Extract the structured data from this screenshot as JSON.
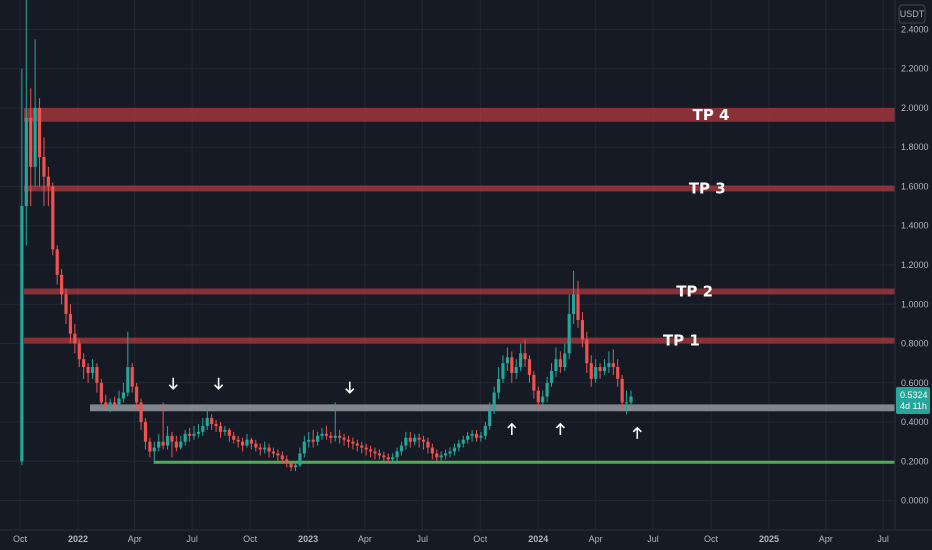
{
  "chart_data": {
    "type": "candlestick",
    "unit": "USDT",
    "ylim": [
      -0.15,
      2.55
    ],
    "y_ticks": [
      {
        "value": 2.4,
        "label": "2.4000"
      },
      {
        "value": 2.2,
        "label": "2.2000"
      },
      {
        "value": 2.0,
        "label": "2.0000"
      },
      {
        "value": 1.8,
        "label": "1.8000"
      },
      {
        "value": 1.6,
        "label": "1.6000"
      },
      {
        "value": 1.4,
        "label": "1.4000"
      },
      {
        "value": 1.2,
        "label": "1.2000"
      },
      {
        "value": 1.0,
        "label": "1.0000"
      },
      {
        "value": 0.8,
        "label": "0.8000"
      },
      {
        "value": 0.6,
        "label": "0.6000"
      },
      {
        "value": 0.4,
        "label": "0.4000"
      },
      {
        "value": 0.2,
        "label": "0.2000"
      },
      {
        "value": 0.0,
        "label": "0.0000"
      }
    ],
    "x_range": [
      "2021-10-01",
      "2025-07-15"
    ],
    "x_ticks": [
      {
        "date": "2021-10-01",
        "label": "Oct",
        "bold": false
      },
      {
        "date": "2022-01-01",
        "label": "2022",
        "bold": true
      },
      {
        "date": "2022-04-01",
        "label": "Apr",
        "bold": false
      },
      {
        "date": "2022-07-01",
        "label": "Jul",
        "bold": false
      },
      {
        "date": "2022-10-01",
        "label": "Oct",
        "bold": false
      },
      {
        "date": "2023-01-01",
        "label": "2023",
        "bold": true
      },
      {
        "date": "2023-04-01",
        "label": "Apr",
        "bold": false
      },
      {
        "date": "2023-07-01",
        "label": "Jul",
        "bold": false
      },
      {
        "date": "2023-10-01",
        "label": "Oct",
        "bold": false
      },
      {
        "date": "2024-01-01",
        "label": "2024",
        "bold": true
      },
      {
        "date": "2024-04-01",
        "label": "Apr",
        "bold": false
      },
      {
        "date": "2024-07-01",
        "label": "Jul",
        "bold": false
      },
      {
        "date": "2024-10-01",
        "label": "Oct",
        "bold": false
      },
      {
        "date": "2025-01-01",
        "label": "2025",
        "bold": true
      },
      {
        "date": "2025-04-01",
        "label": "Apr",
        "bold": false
      },
      {
        "date": "2025-07-01",
        "label": "Jul",
        "bold": false
      }
    ],
    "zones": [
      {
        "label": "TP 4",
        "low": 1.93,
        "high": 2.0,
        "color": "#b2393f",
        "label_date": "2024-10-01"
      },
      {
        "label": "TP 3",
        "low": 1.575,
        "high": 1.605,
        "color": "#b2393f",
        "label_date": "2024-09-25"
      },
      {
        "label": "TP 2",
        "low": 1.05,
        "high": 1.08,
        "color": "#b2393f",
        "label_date": "2024-09-05"
      },
      {
        "label": "TP 1",
        "low": 0.8,
        "high": 0.83,
        "color": "#b2393f",
        "label_date": "2024-08-15"
      },
      {
        "label": "",
        "low": 0.455,
        "high": 0.49,
        "color": "#9598a1",
        "label_date": ""
      }
    ],
    "support_line": {
      "value": 0.195,
      "color": "#4caf50"
    },
    "arrows": [
      {
        "date": "2022-06-01",
        "price": 0.595,
        "dir": "down"
      },
      {
        "date": "2022-08-12",
        "price": 0.595,
        "dir": "down"
      },
      {
        "date": "2023-03-08",
        "price": 0.575,
        "dir": "down"
      },
      {
        "date": "2023-11-20",
        "price": 0.365,
        "dir": "up"
      },
      {
        "date": "2024-02-05",
        "price": 0.365,
        "dir": "up"
      },
      {
        "date": "2024-06-06",
        "price": 0.345,
        "dir": "up"
      }
    ],
    "colors": {
      "up": "#26a69a",
      "down": "#ef5350",
      "grid": "#232733",
      "text": "#b2b5be"
    },
    "last_price": {
      "value": 0.5324,
      "label": "0.5324",
      "countdown": "4d 11h",
      "color": "#26a69a"
    },
    "candles_weekly_from": "2021-10-04",
    "candles": [
      [
        0.2,
        1.5,
        2.2,
        0.18
      ],
      [
        1.5,
        1.95,
        2.6,
        1.3
      ],
      [
        1.95,
        1.7,
        2.1,
        1.5
      ],
      [
        1.7,
        2.0,
        2.35,
        1.6
      ],
      [
        2.0,
        1.75,
        2.05,
        1.6
      ],
      [
        1.75,
        1.65,
        1.85,
        1.5
      ],
      [
        1.65,
        1.6,
        1.7,
        1.5
      ],
      [
        1.6,
        1.28,
        1.62,
        1.25
      ],
      [
        1.28,
        1.15,
        1.3,
        1.1
      ],
      [
        1.15,
        1.05,
        1.18,
        1.0
      ],
      [
        1.05,
        0.95,
        1.08,
        0.9
      ],
      [
        0.95,
        0.85,
        1.0,
        0.8
      ],
      [
        0.85,
        0.8,
        0.9,
        0.75
      ],
      [
        0.8,
        0.72,
        0.82,
        0.68
      ],
      [
        0.72,
        0.68,
        0.75,
        0.62
      ],
      [
        0.68,
        0.65,
        0.7,
        0.6
      ],
      [
        0.65,
        0.68,
        0.72,
        0.62
      ],
      [
        0.68,
        0.6,
        0.7,
        0.55
      ],
      [
        0.6,
        0.5,
        0.62,
        0.48
      ],
      [
        0.5,
        0.48,
        0.54,
        0.46
      ],
      [
        0.48,
        0.5,
        0.52,
        0.45
      ],
      [
        0.5,
        0.49,
        0.53,
        0.47
      ],
      [
        0.49,
        0.52,
        0.56,
        0.47
      ],
      [
        0.52,
        0.55,
        0.6,
        0.5
      ],
      [
        0.55,
        0.68,
        0.86,
        0.53
      ],
      [
        0.68,
        0.58,
        0.7,
        0.55
      ],
      [
        0.58,
        0.5,
        0.6,
        0.46
      ],
      [
        0.5,
        0.4,
        0.52,
        0.36
      ],
      [
        0.4,
        0.3,
        0.42,
        0.26
      ],
      [
        0.3,
        0.25,
        0.32,
        0.22
      ],
      [
        0.25,
        0.27,
        0.3,
        0.2
      ],
      [
        0.27,
        0.3,
        0.34,
        0.25
      ],
      [
        0.3,
        0.28,
        0.5,
        0.26
      ],
      [
        0.28,
        0.33,
        0.38,
        0.26
      ],
      [
        0.33,
        0.3,
        0.35,
        0.22
      ],
      [
        0.3,
        0.27,
        0.33,
        0.25
      ],
      [
        0.27,
        0.3,
        0.33,
        0.26
      ],
      [
        0.3,
        0.34,
        0.36,
        0.28
      ],
      [
        0.34,
        0.33,
        0.37,
        0.3
      ],
      [
        0.33,
        0.34,
        0.38,
        0.31
      ],
      [
        0.34,
        0.35,
        0.39,
        0.32
      ],
      [
        0.35,
        0.38,
        0.42,
        0.33
      ],
      [
        0.38,
        0.42,
        0.48,
        0.36
      ],
      [
        0.42,
        0.39,
        0.44,
        0.36
      ],
      [
        0.39,
        0.38,
        0.41,
        0.35
      ],
      [
        0.38,
        0.35,
        0.4,
        0.32
      ],
      [
        0.35,
        0.36,
        0.38,
        0.33
      ],
      [
        0.36,
        0.33,
        0.37,
        0.3
      ],
      [
        0.33,
        0.31,
        0.35,
        0.29
      ],
      [
        0.31,
        0.3,
        0.33,
        0.27
      ],
      [
        0.3,
        0.28,
        0.32,
        0.25
      ],
      [
        0.28,
        0.31,
        0.34,
        0.27
      ],
      [
        0.31,
        0.29,
        0.32,
        0.26
      ],
      [
        0.29,
        0.27,
        0.31,
        0.25
      ],
      [
        0.27,
        0.26,
        0.29,
        0.23
      ],
      [
        0.26,
        0.27,
        0.3,
        0.24
      ],
      [
        0.27,
        0.25,
        0.29,
        0.22
      ],
      [
        0.25,
        0.24,
        0.27,
        0.22
      ],
      [
        0.24,
        0.23,
        0.26,
        0.2
      ],
      [
        0.23,
        0.21,
        0.25,
        0.19
      ],
      [
        0.21,
        0.19,
        0.23,
        0.17
      ],
      [
        0.19,
        0.17,
        0.2,
        0.15
      ],
      [
        0.17,
        0.18,
        0.2,
        0.15
      ],
      [
        0.18,
        0.24,
        0.27,
        0.17
      ],
      [
        0.24,
        0.3,
        0.33,
        0.22
      ],
      [
        0.3,
        0.31,
        0.35,
        0.27
      ],
      [
        0.31,
        0.3,
        0.36,
        0.27
      ],
      [
        0.3,
        0.33,
        0.35,
        0.28
      ],
      [
        0.33,
        0.34,
        0.37,
        0.31
      ],
      [
        0.34,
        0.33,
        0.38,
        0.31
      ],
      [
        0.33,
        0.32,
        0.35,
        0.29
      ],
      [
        0.32,
        0.33,
        0.5,
        0.3
      ],
      [
        0.33,
        0.32,
        0.36,
        0.29
      ],
      [
        0.32,
        0.31,
        0.34,
        0.28
      ],
      [
        0.31,
        0.3,
        0.33,
        0.27
      ],
      [
        0.3,
        0.29,
        0.32,
        0.26
      ],
      [
        0.29,
        0.28,
        0.31,
        0.25
      ],
      [
        0.28,
        0.27,
        0.3,
        0.24
      ],
      [
        0.27,
        0.26,
        0.29,
        0.23
      ],
      [
        0.26,
        0.25,
        0.28,
        0.22
      ],
      [
        0.25,
        0.24,
        0.27,
        0.21
      ],
      [
        0.24,
        0.23,
        0.26,
        0.21
      ],
      [
        0.23,
        0.22,
        0.25,
        0.2
      ],
      [
        0.22,
        0.21,
        0.24,
        0.19
      ],
      [
        0.21,
        0.22,
        0.24,
        0.19
      ],
      [
        0.22,
        0.25,
        0.27,
        0.2
      ],
      [
        0.25,
        0.28,
        0.3,
        0.23
      ],
      [
        0.28,
        0.32,
        0.35,
        0.26
      ],
      [
        0.32,
        0.3,
        0.35,
        0.27
      ],
      [
        0.3,
        0.32,
        0.34,
        0.28
      ],
      [
        0.32,
        0.31,
        0.34,
        0.27
      ],
      [
        0.31,
        0.3,
        0.33,
        0.26
      ],
      [
        0.3,
        0.27,
        0.32,
        0.24
      ],
      [
        0.27,
        0.24,
        0.29,
        0.21
      ],
      [
        0.24,
        0.22,
        0.26,
        0.2
      ],
      [
        0.22,
        0.23,
        0.25,
        0.2
      ],
      [
        0.23,
        0.24,
        0.26,
        0.21
      ],
      [
        0.24,
        0.25,
        0.27,
        0.22
      ],
      [
        0.25,
        0.27,
        0.29,
        0.23
      ],
      [
        0.27,
        0.29,
        0.31,
        0.25
      ],
      [
        0.29,
        0.31,
        0.33,
        0.27
      ],
      [
        0.31,
        0.33,
        0.35,
        0.29
      ],
      [
        0.33,
        0.34,
        0.36,
        0.3
      ],
      [
        0.34,
        0.32,
        0.36,
        0.3
      ],
      [
        0.32,
        0.33,
        0.35,
        0.3
      ],
      [
        0.33,
        0.38,
        0.4,
        0.31
      ],
      [
        0.38,
        0.46,
        0.5,
        0.36
      ],
      [
        0.46,
        0.55,
        0.58,
        0.44
      ],
      [
        0.55,
        0.62,
        0.68,
        0.52
      ],
      [
        0.62,
        0.7,
        0.74,
        0.6
      ],
      [
        0.7,
        0.73,
        0.78,
        0.66
      ],
      [
        0.73,
        0.65,
        0.76,
        0.6
      ],
      [
        0.65,
        0.68,
        0.72,
        0.62
      ],
      [
        0.68,
        0.75,
        0.8,
        0.66
      ],
      [
        0.75,
        0.72,
        0.82,
        0.68
      ],
      [
        0.72,
        0.64,
        0.74,
        0.6
      ],
      [
        0.64,
        0.56,
        0.66,
        0.52
      ],
      [
        0.56,
        0.5,
        0.58,
        0.47
      ],
      [
        0.5,
        0.53,
        0.56,
        0.48
      ],
      [
        0.53,
        0.6,
        0.63,
        0.5
      ],
      [
        0.6,
        0.66,
        0.7,
        0.58
      ],
      [
        0.66,
        0.72,
        0.78,
        0.63
      ],
      [
        0.72,
        0.68,
        0.76,
        0.65
      ],
      [
        0.68,
        0.75,
        0.8,
        0.66
      ],
      [
        0.75,
        0.95,
        1.05,
        0.72
      ],
      [
        0.95,
        1.05,
        1.17,
        0.9
      ],
      [
        1.05,
        0.92,
        1.12,
        0.88
      ],
      [
        0.92,
        0.82,
        0.96,
        0.78
      ],
      [
        0.82,
        0.7,
        0.86,
        0.65
      ],
      [
        0.7,
        0.62,
        0.74,
        0.58
      ],
      [
        0.62,
        0.68,
        0.72,
        0.6
      ],
      [
        0.68,
        0.66,
        0.7,
        0.62
      ],
      [
        0.66,
        0.68,
        0.72,
        0.64
      ],
      [
        0.68,
        0.7,
        0.76,
        0.65
      ],
      [
        0.7,
        0.68,
        0.77,
        0.64
      ],
      [
        0.68,
        0.62,
        0.72,
        0.58
      ],
      [
        0.62,
        0.5,
        0.64,
        0.46
      ],
      [
        0.5,
        0.5,
        0.56,
        0.44
      ],
      [
        0.5,
        0.53,
        0.56,
        0.48
      ]
    ]
  }
}
